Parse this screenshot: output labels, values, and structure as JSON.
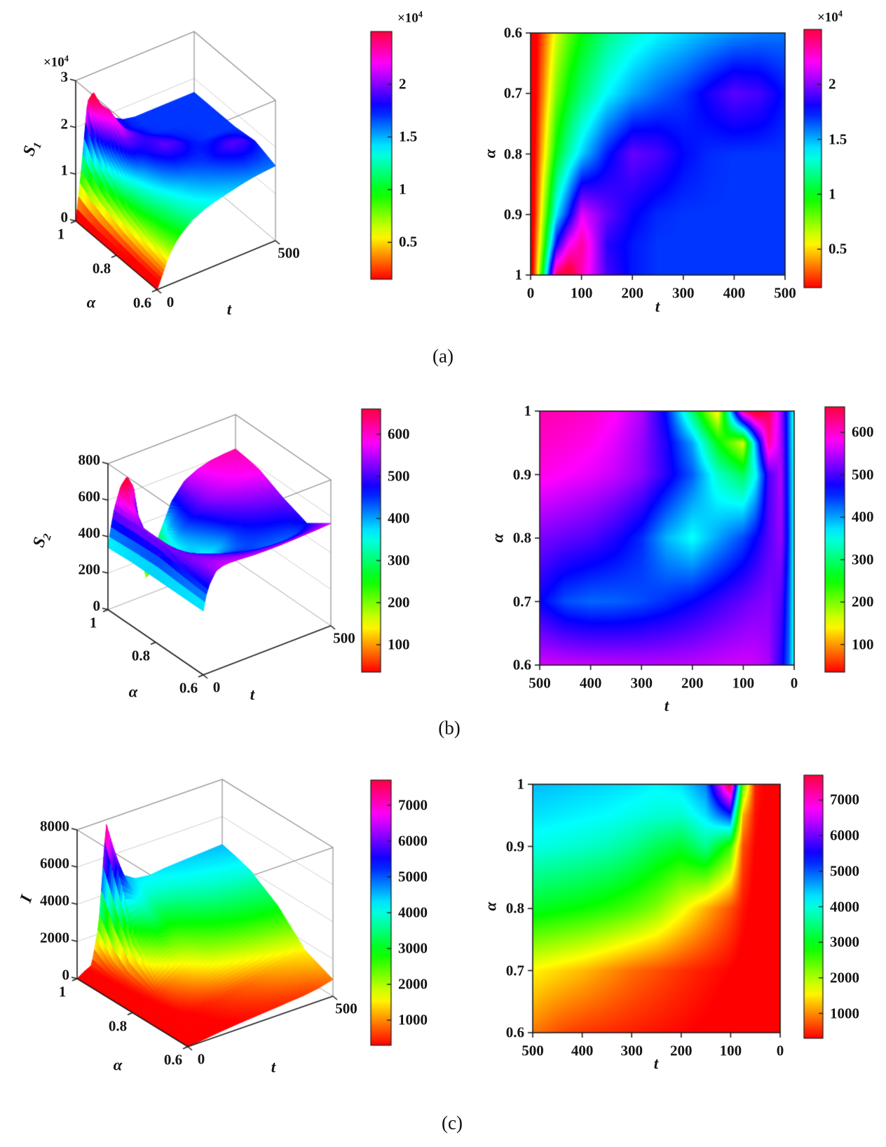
{
  "figure": {
    "background": "#ffffff",
    "captions": [
      "(a)",
      "(b)",
      "(c)"
    ]
  },
  "chart_data": [
    {
      "panel": "a",
      "type": "surface+heatmap",
      "colormap": "hsv",
      "x_label": "t",
      "y_label": "α",
      "z_label": {
        "base": "S",
        "sub": "1"
      },
      "x": [
        0,
        10,
        25,
        50,
        75,
        100,
        150,
        200,
        250,
        300,
        350,
        400,
        450,
        500
      ],
      "y": [
        0.6,
        0.7,
        0.8,
        0.9,
        0.95,
        1.0
      ],
      "z_grid": [
        [
          0,
          1200,
          3000,
          6200,
          8200,
          9700,
          11800,
          13000,
          13800,
          14400,
          15000,
          15500,
          15800,
          16000
        ],
        [
          0,
          1500,
          3800,
          7800,
          10000,
          11500,
          13800,
          15200,
          16200,
          17000,
          18200,
          19300,
          18900,
          17600
        ],
        [
          0,
          2000,
          5000,
          10000,
          12500,
          14500,
          17500,
          19500,
          19000,
          17800,
          17200,
          17000,
          17000,
          17000
        ],
        [
          0,
          2600,
          7000,
          14000,
          17500,
          21500,
          19500,
          18000,
          17200,
          17000,
          17000,
          17000,
          17000,
          17000
        ],
        [
          0,
          3200,
          8500,
          18000,
          22000,
          23500,
          18500,
          17500,
          17000,
          17000,
          17000,
          17000,
          17000,
          17000
        ],
        [
          0,
          4000,
          11000,
          24500,
          26000,
          23000,
          19000,
          17500,
          17000,
          17000,
          17000,
          17000,
          17000,
          17000
        ]
      ],
      "surface": {
        "zlim": [
          0,
          30000
        ],
        "z_ticks": {
          "values": [
            0,
            10000,
            20000,
            30000
          ],
          "labels": [
            "0",
            "1",
            "2",
            "3"
          ]
        },
        "y_ticks": {
          "values": [
            1,
            0.8,
            0.6
          ],
          "labels": [
            "1",
            "0.8",
            "0.6"
          ]
        },
        "x_ticks": {
          "values": [
            0,
            500
          ],
          "labels": [
            "0",
            "500"
          ]
        },
        "scale_label": {
          "base": "×10",
          "exp": "4"
        }
      },
      "heatmap": {
        "x_ticks": {
          "values": [
            0,
            100,
            200,
            300,
            400,
            500
          ],
          "labels": [
            "0",
            "100",
            "200",
            "300",
            "400",
            "500"
          ]
        },
        "x_reversed": false,
        "y_ticks": {
          "values": [
            0.6,
            0.7,
            0.8,
            0.9,
            1
          ],
          "labels": [
            "0.6",
            "0.7",
            "0.8",
            "0.9",
            "1"
          ]
        },
        "y_min_at_top": true
      },
      "colorbar": {
        "range": [
          1500,
          25000
        ],
        "ticks": {
          "values": [
            5000,
            10000,
            15000,
            20000
          ],
          "labels": [
            "0.5",
            "1",
            "1.5",
            "2"
          ]
        },
        "scale_label": {
          "base": "×10",
          "exp": "4"
        }
      }
    },
    {
      "panel": "b",
      "type": "surface+heatmap",
      "colormap": "hsv",
      "x_label": "t",
      "y_label": "α",
      "z_label": {
        "base": "S",
        "sub": "2"
      },
      "x": [
        0,
        10,
        25,
        50,
        75,
        100,
        150,
        200,
        250,
        300,
        350,
        400,
        450,
        500
      ],
      "y": [
        0.6,
        0.7,
        0.8,
        0.9,
        0.95,
        1.0
      ],
      "z_grid": [
        [
          350,
          425,
          485,
          542,
          556,
          560,
          556,
          551,
          549,
          549,
          551,
          554,
          557,
          561
        ],
        [
          350,
          435,
          505,
          528,
          522,
          512,
          492,
          470,
          452,
          437,
          428,
          426,
          437,
          472
        ],
        [
          350,
          450,
          535,
          505,
          470,
          440,
          400,
          358,
          392,
          452,
          482,
          502,
          512,
          522
        ],
        [
          350,
          440,
          545,
          500,
          360,
          290,
          340,
          430,
          485,
          530,
          553,
          568,
          578,
          588
        ],
        [
          345,
          435,
          540,
          620,
          400,
          160,
          260,
          400,
          480,
          535,
          565,
          585,
          595,
          602
        ],
        [
          340,
          430,
          540,
          650,
          690,
          620,
          130,
          300,
          460,
          545,
          580,
          600,
          608,
          612
        ]
      ],
      "surface": {
        "zlim": [
          0,
          800
        ],
        "z_ticks": {
          "values": [
            0,
            200,
            400,
            600,
            800
          ],
          "labels": [
            "0",
            "200",
            "400",
            "600",
            "800"
          ]
        },
        "y_ticks": {
          "values": [
            1,
            0.8,
            0.6
          ],
          "labels": [
            "1",
            "0.8",
            "0.6"
          ]
        },
        "x_ticks": {
          "values": [
            0,
            500
          ],
          "labels": [
            "0",
            "500"
          ]
        },
        "scale_label": null
      },
      "heatmap": {
        "x_ticks": {
          "values": [
            500,
            400,
            300,
            200,
            100,
            0
          ],
          "labels": [
            "500",
            "400",
            "300",
            "200",
            "100",
            "0"
          ]
        },
        "x_reversed": true,
        "y_ticks": {
          "values": [
            1,
            0.9,
            0.8,
            0.7,
            0.6
          ],
          "labels": [
            "1",
            "0.9",
            "0.8",
            "0.7",
            "0.6"
          ]
        },
        "y_min_at_top": false
      },
      "colorbar": {
        "range": [
          35,
          660
        ],
        "ticks": {
          "values": [
            100,
            200,
            300,
            400,
            500,
            600
          ],
          "labels": [
            "100",
            "200",
            "300",
            "400",
            "500",
            "600"
          ]
        },
        "scale_label": null
      }
    },
    {
      "panel": "c",
      "type": "surface+heatmap",
      "colormap": "hsv",
      "x_label": "t",
      "y_label": "α",
      "z_label": {
        "base": "I",
        "sub": ""
      },
      "x": [
        0,
        10,
        25,
        50,
        75,
        100,
        150,
        200,
        250,
        300,
        350,
        400,
        450,
        500
      ],
      "y": [
        0.6,
        0.7,
        0.8,
        0.9,
        0.95,
        1.0
      ],
      "z_grid": [
        [
          0,
          20,
          40,
          80,
          130,
          180,
          260,
          330,
          390,
          450,
          520,
          580,
          700,
          900
        ],
        [
          0,
          30,
          60,
          120,
          200,
          300,
          420,
          550,
          700,
          850,
          1050,
          1250,
          1400,
          1550
        ],
        [
          0,
          40,
          100,
          200,
          400,
          700,
          1200,
          1700,
          2200,
          2500,
          2700,
          2850,
          2950,
          3050
        ],
        [
          0,
          60,
          150,
          300,
          700,
          2600,
          3600,
          3100,
          3300,
          3600,
          3800,
          3900,
          3980,
          4050
        ],
        [
          0,
          80,
          200,
          380,
          1200,
          5200,
          4300,
          3900,
          3950,
          4050,
          4150,
          4200,
          4250,
          4300
        ],
        [
          0,
          100,
          250,
          450,
          2500,
          7800,
          4800,
          4300,
          4200,
          4300,
          4350,
          4400,
          4450,
          4500
        ]
      ],
      "surface": {
        "zlim": [
          0,
          8000
        ],
        "z_ticks": {
          "values": [
            0,
            2000,
            4000,
            6000,
            8000
          ],
          "labels": [
            "0",
            "2000",
            "4000",
            "6000",
            "8000"
          ]
        },
        "y_ticks": {
          "values": [
            1,
            0.8,
            0.6
          ],
          "labels": [
            "1",
            "0.8",
            "0.6"
          ]
        },
        "x_ticks": {
          "values": [
            0,
            500
          ],
          "labels": [
            "0",
            "500"
          ]
        },
        "scale_label": null
      },
      "heatmap": {
        "x_ticks": {
          "values": [
            500,
            400,
            300,
            200,
            100,
            0
          ],
          "labels": [
            "500",
            "400",
            "300",
            "200",
            "100",
            "0"
          ]
        },
        "x_reversed": true,
        "y_ticks": {
          "values": [
            1,
            0.9,
            0.8,
            0.7,
            0.6
          ],
          "labels": [
            "1",
            "0.9",
            "0.8",
            "0.7",
            "0.6"
          ]
        },
        "y_min_at_top": false
      },
      "colorbar": {
        "range": [
          300,
          7700
        ],
        "ticks": {
          "values": [
            1000,
            2000,
            3000,
            4000,
            5000,
            6000,
            7000
          ],
          "labels": [
            "1000",
            "2000",
            "3000",
            "4000",
            "5000",
            "6000",
            "7000"
          ]
        },
        "scale_label": null
      }
    }
  ]
}
